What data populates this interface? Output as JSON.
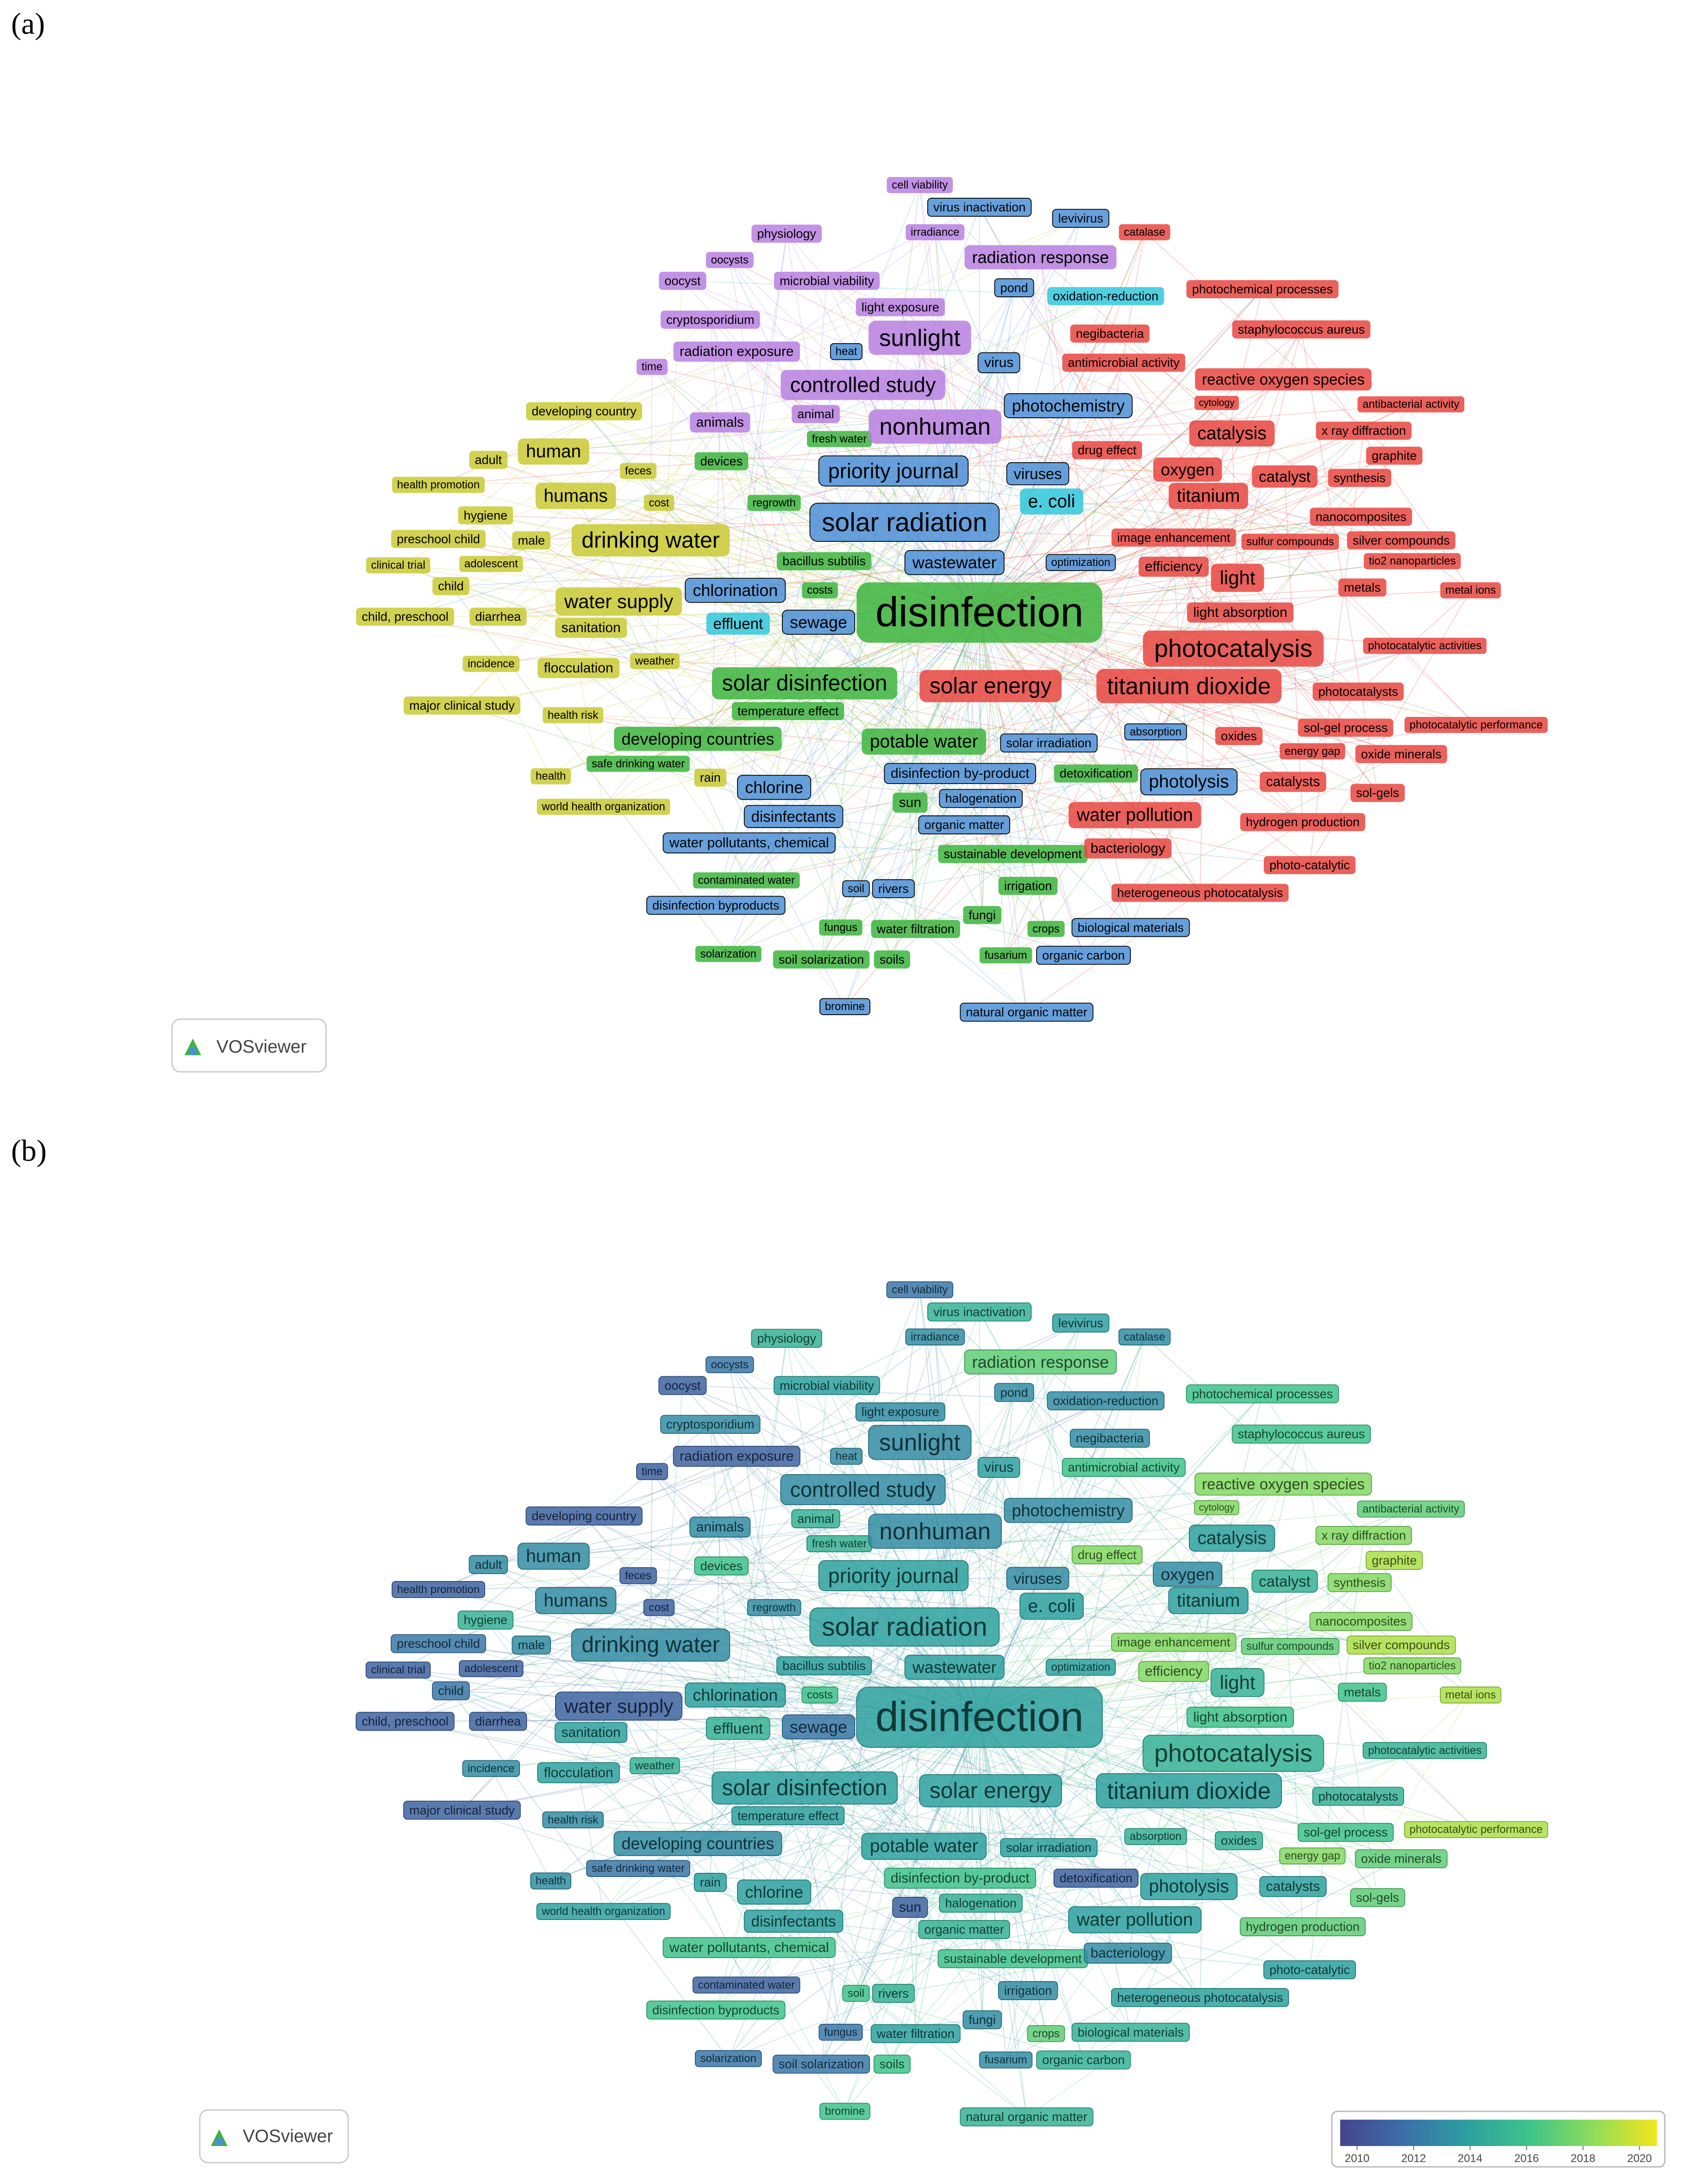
{
  "panels": [
    {
      "label": "(a)"
    },
    {
      "label": "(b)"
    }
  ],
  "logo": "VOSviewer",
  "clusters": [
    {
      "color": "#e8453f",
      "nodes": [
        {
          "label": "catalase",
          "year": 2013
        },
        {
          "label": "photochemical processes",
          "year": 2016
        },
        {
          "label": "staphylococcus aureus",
          "year": 2016
        },
        {
          "label": "negibacteria",
          "year": 2013
        },
        {
          "label": "antimicrobial activity",
          "year": 2016
        },
        {
          "label": "reactive oxygen species",
          "year": 2018
        },
        {
          "label": "cytology",
          "year": 2018
        },
        {
          "label": "antibacterial activity",
          "year": 2017
        },
        {
          "label": "x ray diffraction",
          "year": 2018
        },
        {
          "label": "catalysis",
          "year": 2014
        },
        {
          "label": "drug effect",
          "year": 2018
        },
        {
          "label": "graphite",
          "year": 2019
        },
        {
          "label": "oxygen",
          "year": 2013
        },
        {
          "label": "catalyst",
          "year": 2015
        },
        {
          "label": "synthesis",
          "year": 2018
        },
        {
          "label": "titanium",
          "year": 2014
        },
        {
          "label": "nanocomposites",
          "year": 2018
        },
        {
          "label": "image enhancement",
          "year": 2018
        },
        {
          "label": "sulfur compounds",
          "year": 2017
        },
        {
          "label": "silver compounds",
          "year": 2019
        },
        {
          "label": "efficiency",
          "year": 2018
        },
        {
          "label": "light",
          "year": 2015
        },
        {
          "label": "tio2 nanoparticles",
          "year": 2018
        },
        {
          "label": "metals",
          "year": 2016
        },
        {
          "label": "metal ions",
          "year": 2019
        },
        {
          "label": "light absorption",
          "year": 2016
        },
        {
          "label": "photocatalysis",
          "year": 2015
        },
        {
          "label": "photocatalytic activities",
          "year": 2015
        },
        {
          "label": "solar energy",
          "year": 2014
        },
        {
          "label": "titanium dioxide",
          "year": 2014
        },
        {
          "label": "photocatalysts",
          "year": 2015
        },
        {
          "label": "sol-gel process",
          "year": 2016
        },
        {
          "label": "photocatalytic performance",
          "year": 2019
        },
        {
          "label": "oxides",
          "year": 2015
        },
        {
          "label": "energy gap",
          "year": 2018
        },
        {
          "label": "oxide minerals",
          "year": 2017
        },
        {
          "label": "catalysts",
          "year": 2014
        },
        {
          "label": "sol-gels",
          "year": 2017
        },
        {
          "label": "water pollution",
          "year": 2014
        },
        {
          "label": "hydrogen production",
          "year": 2017
        },
        {
          "label": "bacteriology",
          "year": 2013
        },
        {
          "label": "photo-catalytic",
          "year": 2014
        },
        {
          "label": "heterogeneous photocatalysis",
          "year": 2014
        }
      ]
    },
    {
      "color": "#3cb43c",
      "nodes": [
        {
          "label": "disinfection",
          "year": 2014
        },
        {
          "label": "devices",
          "year": 2016
        },
        {
          "label": "regrowth",
          "year": 2013
        },
        {
          "label": "bacillus subtilis",
          "year": 2014
        },
        {
          "label": "costs",
          "year": 2016
        },
        {
          "label": "solar disinfection",
          "year": 2014
        },
        {
          "label": "temperature effect",
          "year": 2014
        },
        {
          "label": "developing countries",
          "year": 2013
        },
        {
          "label": "potable water",
          "year": 2014
        },
        {
          "label": "safe drinking water",
          "year": 2012
        },
        {
          "label": "detoxification",
          "year": 2011
        },
        {
          "label": "sun",
          "year": 2011
        },
        {
          "label": "sustainable development",
          "year": 2016
        },
        {
          "label": "contaminated water",
          "year": 2011
        },
        {
          "label": "irrigation",
          "year": 2013
        },
        {
          "label": "fungi",
          "year": 2013
        },
        {
          "label": "water filtration",
          "year": 2014
        },
        {
          "label": "fungus",
          "year": 2012
        },
        {
          "label": "crops",
          "year": 2017
        },
        {
          "label": "solarization",
          "year": 2012
        },
        {
          "label": "soil solarization",
          "year": 2012
        },
        {
          "label": "soils",
          "year": 2016
        },
        {
          "label": "fusarium",
          "year": 2013
        },
        {
          "label": "fresh water",
          "year": 2015
        }
      ]
    },
    {
      "color": "#4c8fd6",
      "nodes": [
        {
          "label": "virus inactivation",
          "year": 2015
        },
        {
          "label": "levivirus",
          "year": 2014
        },
        {
          "label": "pond",
          "year": 2013
        },
        {
          "label": "heat",
          "year": 2013
        },
        {
          "label": "virus",
          "year": 2014
        },
        {
          "label": "photochemistry",
          "year": 2013
        },
        {
          "label": "priority journal",
          "year": 2014
        },
        {
          "label": "viruses",
          "year": 2013
        },
        {
          "label": "solar radiation",
          "year": 2014
        },
        {
          "label": "wastewater",
          "year": 2014
        },
        {
          "label": "optimization",
          "year": 2014
        },
        {
          "label": "chlorination",
          "year": 2014
        },
        {
          "label": "sewage",
          "year": 2012
        },
        {
          "label": "absorption",
          "year": 2015
        },
        {
          "label": "solar irradiation",
          "year": 2014
        },
        {
          "label": "disinfection by-product",
          "year": 2016
        },
        {
          "label": "photolysis",
          "year": 2014
        },
        {
          "label": "chlorine",
          "year": 2014
        },
        {
          "label": "halogenation",
          "year": 2015
        },
        {
          "label": "disinfectants",
          "year": 2014
        },
        {
          "label": "organic matter",
          "year": 2015
        },
        {
          "label": "water pollutants, chemical",
          "year": 2016
        },
        {
          "label": "rivers",
          "year": 2015
        },
        {
          "label": "soil",
          "year": 2016
        },
        {
          "label": "disinfection byproducts",
          "year": 2016
        },
        {
          "label": "biological materials",
          "year": 2015
        },
        {
          "label": "organic carbon",
          "year": 2015
        },
        {
          "label": "bromine",
          "year": 2016
        },
        {
          "label": "natural organic matter",
          "year": 2015
        }
      ]
    },
    {
      "color": "#31c7dc",
      "nodes": [
        {
          "label": "oxidation-reduction",
          "year": 2013
        },
        {
          "label": "e. coli",
          "year": 2014
        },
        {
          "label": "effluent",
          "year": 2015
        }
      ]
    },
    {
      "color": "#c9c934",
      "nodes": [
        {
          "label": "developing country",
          "year": 2011
        },
        {
          "label": "adult",
          "year": 2013
        },
        {
          "label": "human",
          "year": 2013
        },
        {
          "label": "health promotion",
          "year": 2011
        },
        {
          "label": "feces",
          "year": 2011
        },
        {
          "label": "hygiene",
          "year": 2015
        },
        {
          "label": "humans",
          "year": 2013
        },
        {
          "label": "cost",
          "year": 2011
        },
        {
          "label": "preschool child",
          "year": 2012
        },
        {
          "label": "male",
          "year": 2013
        },
        {
          "label": "drinking water",
          "year": 2013
        },
        {
          "label": "clinical trial",
          "year": 2011
        },
        {
          "label": "adolescent",
          "year": 2011
        },
        {
          "label": "child",
          "year": 2012
        },
        {
          "label": "water supply",
          "year": 2011
        },
        {
          "label": "child, preschool",
          "year": 2011
        },
        {
          "label": "diarrhea",
          "year": 2011
        },
        {
          "label": "sanitation",
          "year": 2014
        },
        {
          "label": "incidence",
          "year": 2013
        },
        {
          "label": "flocculation",
          "year": 2014
        },
        {
          "label": "weather",
          "year": 2015
        },
        {
          "label": "major clinical study",
          "year": 2011
        },
        {
          "label": "health risk",
          "year": 2013
        },
        {
          "label": "health",
          "year": 2013
        },
        {
          "label": "rain",
          "year": 2014
        },
        {
          "label": "world health organization",
          "year": 2014
        }
      ]
    },
    {
      "color": "#b77fe0",
      "nodes": [
        {
          "label": "cell viability",
          "year": 2012
        },
        {
          "label": "physiology",
          "year": 2015
        },
        {
          "label": "irradiance",
          "year": 2013
        },
        {
          "label": "radiation response",
          "year": 2017
        },
        {
          "label": "oocysts",
          "year": 2012
        },
        {
          "label": "microbial viability",
          "year": 2014
        },
        {
          "label": "oocyst",
          "year": 2011
        },
        {
          "label": "light exposure",
          "year": 2013
        },
        {
          "label": "cryptosporidium",
          "year": 2013
        },
        {
          "label": "sunlight",
          "year": 2013
        },
        {
          "label": "radiation exposure",
          "year": 2011
        },
        {
          "label": "time",
          "year": 2011
        },
        {
          "label": "controlled study",
          "year": 2013
        },
        {
          "label": "animals",
          "year": 2013
        },
        {
          "label": "animal",
          "year": 2015
        },
        {
          "label": "nonhuman",
          "year": 2013
        }
      ]
    }
  ],
  "overlay": {
    "colormap": [
      "#46448c",
      "#3b6fa8",
      "#2c9fa0",
      "#3fc48a",
      "#8fdc5a",
      "#f2e61c"
    ],
    "range": [
      2009.4,
      2020.6
    ],
    "ticks": [
      2010,
      2012,
      2014,
      2016,
      2018,
      2020
    ]
  }
}
